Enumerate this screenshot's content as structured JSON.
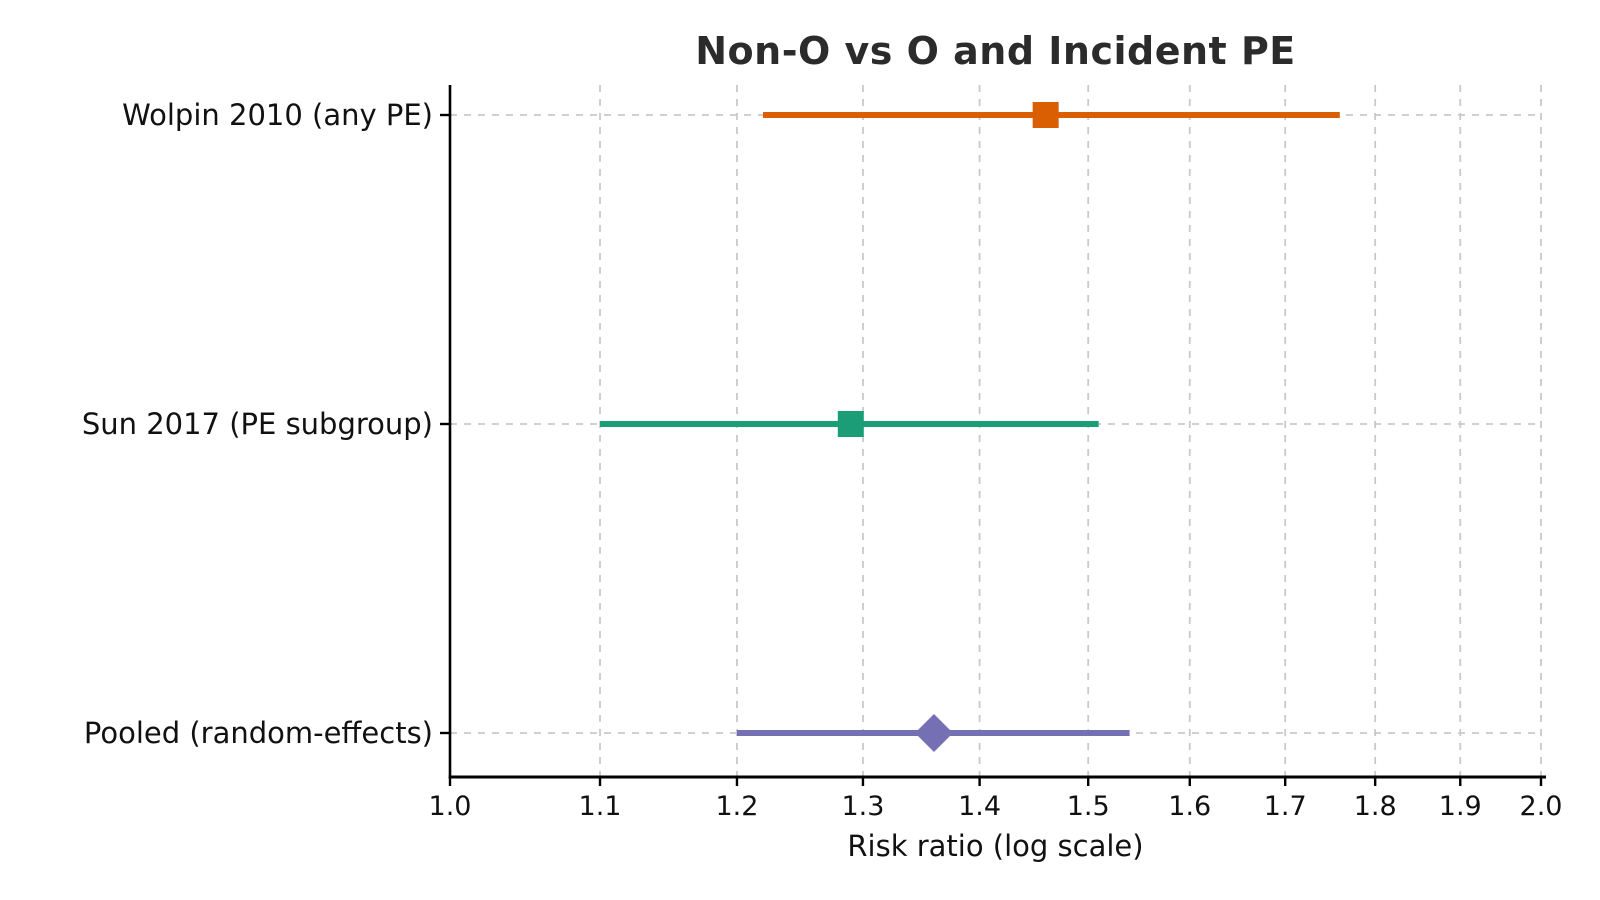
{
  "figure": {
    "background": "#ffffff"
  },
  "chart_data": {
    "type": "scatter",
    "subtype": "forest-plot",
    "title": "Non-O vs O and Incident PE",
    "xlabel": "Risk ratio (log scale)",
    "ylabel": "",
    "x_scale": "log",
    "xlim": [
      1.0,
      2.0
    ],
    "x_tick_values": [
      1.0,
      1.1,
      1.2,
      1.3,
      1.4,
      1.5,
      1.6,
      1.7,
      1.8,
      1.9,
      2.0
    ],
    "x_ticks": [
      "1.0",
      "1.1",
      "1.2",
      "1.3",
      "1.4",
      "1.5",
      "1.6",
      "1.7",
      "1.8",
      "1.9",
      "2.0"
    ],
    "grid": true,
    "grid_style": "dashed",
    "legend": "none",
    "rows": [
      {
        "label": "Wolpin 2010 (any PE)",
        "estimate": 1.46,
        "ci_low": 1.22,
        "ci_high": 1.76,
        "marker": "square",
        "color": "#d95f02"
      },
      {
        "label": "Sun 2017 (PE subgroup)",
        "estimate": 1.29,
        "ci_low": 1.1,
        "ci_high": 1.51,
        "marker": "square",
        "color": "#1b9e77"
      },
      {
        "label": "Pooled (random-effects)",
        "estimate": 1.36,
        "ci_low": 1.2,
        "ci_high": 1.54,
        "marker": "diamond",
        "color": "#7570b3"
      }
    ],
    "colors": {
      "grid": "#c9c9c9",
      "axis": "#000000",
      "text": "#111111",
      "title": "#2b2b2b"
    }
  }
}
